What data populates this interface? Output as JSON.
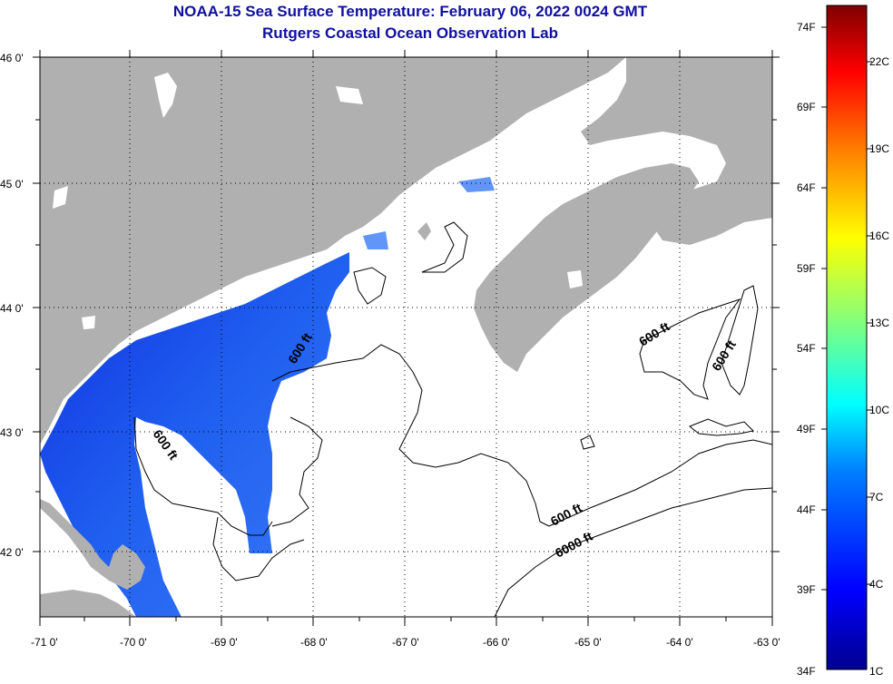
{
  "title": "NOAA-15 Sea Surface Temperature:  February 06, 2022 0024 GMT",
  "subtitle": "Rutgers Coastal Ocean Observation Lab",
  "map": {
    "lon_range": [
      -71,
      -63
    ],
    "lat_range": [
      41.5,
      46
    ],
    "lon_ticks": [
      "-71 0'",
      "-70 0'",
      "-69 0'",
      "-68 0'",
      "-67 0'",
      "-66 0'",
      "-65 0'",
      "-64 0'",
      "-63 0'"
    ],
    "lat_ticks": [
      "46 0'",
      "45 0'",
      "44 0'",
      "43 0'",
      "42 0'"
    ],
    "grid": "dotted",
    "land_color": "#b0b0b0",
    "water_color": "#ffffff",
    "contour_labels": [
      "600 ft",
      "600 ft",
      "600 ft",
      "600 ft",
      "600 ft",
      "6000 ft"
    ]
  },
  "colorbar": {
    "fahrenheit_labels": [
      "74F",
      "69F",
      "64F",
      "59F",
      "54F",
      "49F",
      "44F",
      "39F",
      "34F"
    ],
    "celsius_labels": [
      "22C",
      "19C",
      "16C",
      "13C",
      "10C",
      "7C",
      "4C",
      "1C"
    ],
    "min_c": 1,
    "max_c": 24
  }
}
